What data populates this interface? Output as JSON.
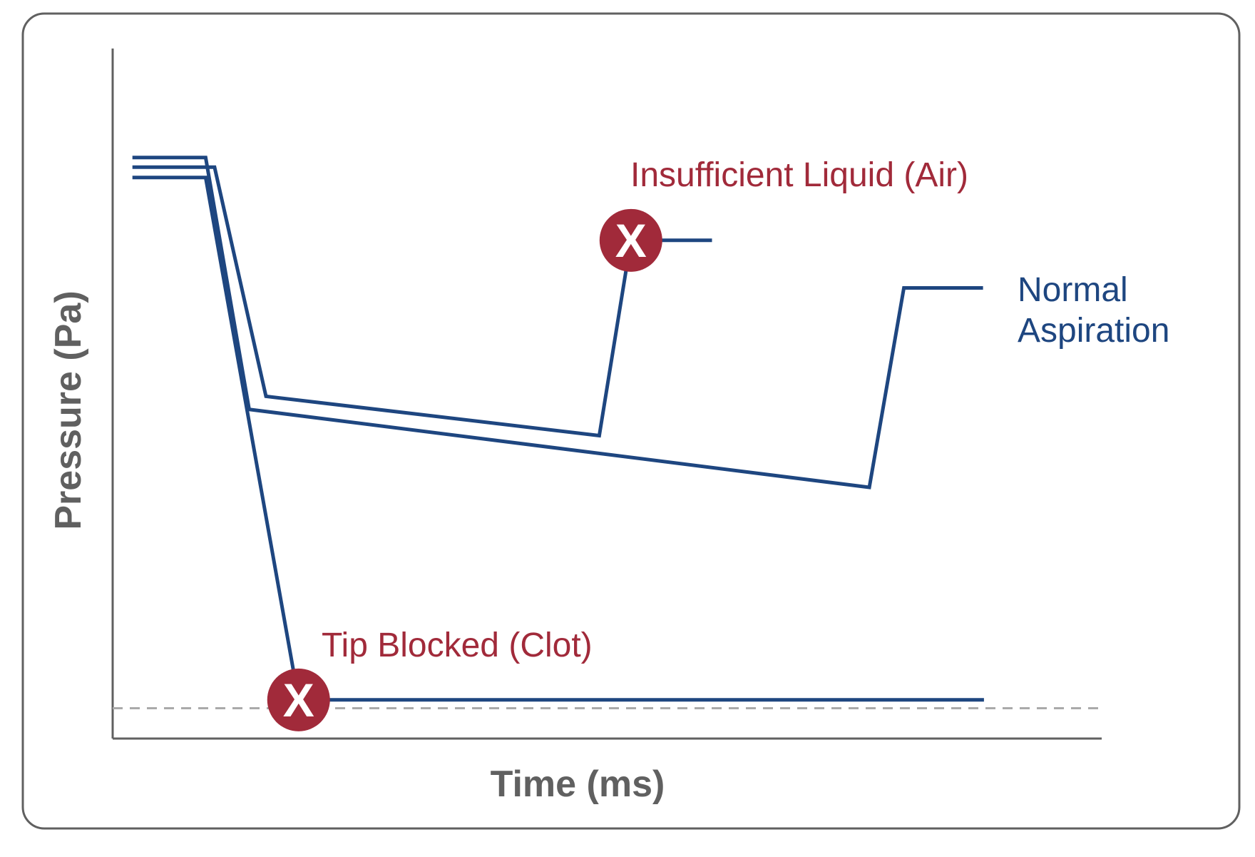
{
  "chart_data": {
    "type": "line",
    "title": "",
    "xlabel": "Time (ms)",
    "ylabel": "Pressure (Pa)",
    "x_ticks": "none",
    "y_ticks": "none",
    "grid": false,
    "legend": "none (direct labels)",
    "threshold": {
      "style": "dashed",
      "color": "#aaaaaa",
      "y": 4.4
    },
    "colors": {
      "series": "#1e4680",
      "alert": "#a12a3a",
      "axis_text": "#606060",
      "frame": "#606060",
      "threshold": "#aaaaaa"
    },
    "xlim": [
      0,
      100
    ],
    "ylim": [
      0,
      100
    ],
    "series": [
      {
        "name": "Normal Aspiration",
        "points": [
          [
            2,
            84.2
          ],
          [
            9.4,
            84.2
          ],
          [
            13.8,
            47.7
          ],
          [
            76.5,
            36.4
          ],
          [
            80,
            65.3
          ],
          [
            88,
            65.3
          ]
        ]
      },
      {
        "name": "Insufficient Liquid (Air)",
        "points": [
          [
            2,
            82.8
          ],
          [
            10.3,
            82.8
          ],
          [
            15.5,
            49.6
          ],
          [
            49.2,
            43.9
          ],
          [
            52.4,
            72.2
          ],
          [
            60.6,
            72.2
          ]
        ],
        "marker": {
          "at": [
            52.4,
            72.2
          ],
          "symbol": "X"
        }
      },
      {
        "name": "Tip Blocked (Clot)",
        "points": [
          [
            2,
            81.3
          ],
          [
            9.4,
            81.3
          ],
          [
            18.8,
            5.6
          ],
          [
            88.1,
            5.6
          ]
        ],
        "marker": {
          "at": [
            18.8,
            5.6
          ],
          "symbol": "X"
        }
      }
    ]
  },
  "labels": {
    "normal_line1": "Normal",
    "normal_line2": "Aspiration",
    "insufficient": "Insufficient Liquid (Air)",
    "tip_blocked": "Tip Blocked (Clot)",
    "marker_symbol": "X"
  }
}
